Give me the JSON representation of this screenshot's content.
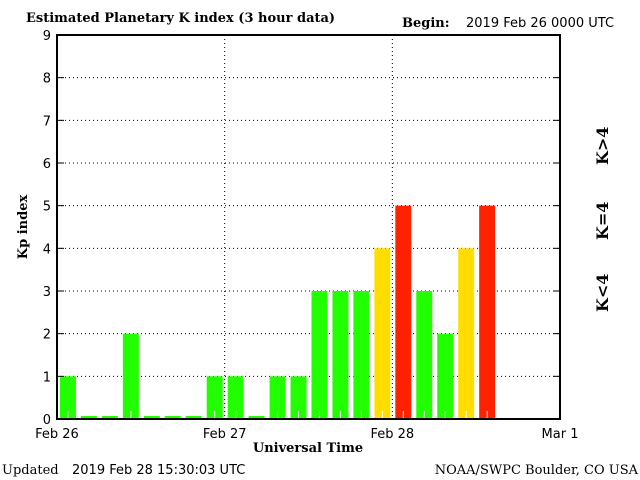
{
  "header": {
    "title": "Estimated Planetary K index (3 hour data)",
    "begin_label": "Begin:",
    "begin_value": "2019 Feb 26 0000 UTC"
  },
  "footer": {
    "updated_label": "Updated",
    "updated_value": "2019 Feb 28 15:30:03 UTC",
    "source": "NOAA/SWPC Boulder, CO USA"
  },
  "legend": [
    {
      "label": "K>4",
      "color": "#ff2200"
    },
    {
      "label": "K=4",
      "color": "#ffdd00"
    },
    {
      "label": "K<4",
      "color": "#22ff00"
    }
  ],
  "chart_data": {
    "type": "bar",
    "title": "Estimated Planetary K index (3 hour data)",
    "xlabel": "Universal Time",
    "ylabel": "Kp index",
    "ylim": [
      0,
      9
    ],
    "yticks": [
      "0",
      "1",
      "2",
      "3",
      "4",
      "5",
      "6",
      "7",
      "8",
      "9"
    ],
    "xticks": [
      "Feb 26",
      "Feb 27",
      "Feb 28",
      "Mar 1"
    ],
    "bars_per_day": 8,
    "values": [
      1,
      0,
      0,
      2,
      0,
      0,
      0,
      1,
      1,
      0,
      1,
      1,
      3,
      3,
      3,
      4,
      5,
      3,
      2,
      4,
      5
    ],
    "grid": true
  }
}
